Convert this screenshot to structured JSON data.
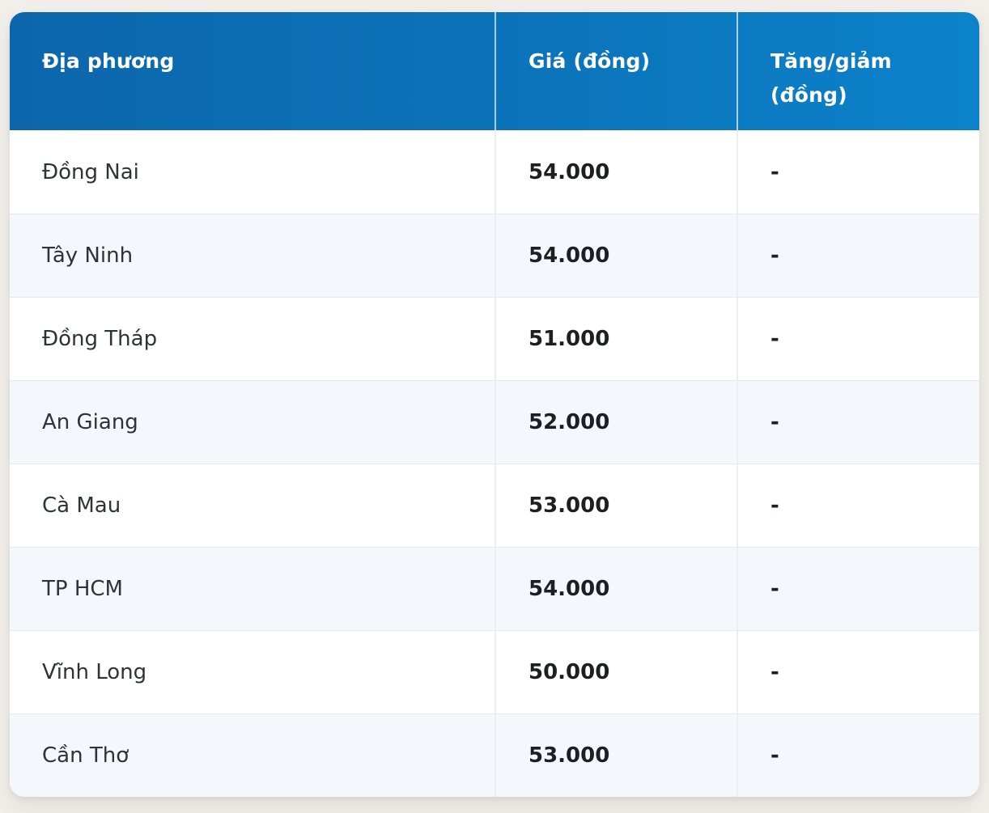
{
  "table": {
    "header": {
      "col_location": "Địa phương",
      "col_price": "Giá (đồng)",
      "col_change": "Tăng/giảm (đồng)"
    },
    "rows": [
      {
        "location": "Đồng Nai",
        "price": "54.000",
        "change": "-"
      },
      {
        "location": "Tây Ninh",
        "price": "54.000",
        "change": "-"
      },
      {
        "location": "Đồng Tháp",
        "price": "51.000",
        "change": "-"
      },
      {
        "location": "An Giang",
        "price": "52.000",
        "change": "-"
      },
      {
        "location": "Cà Mau",
        "price": "53.000",
        "change": "-"
      },
      {
        "location": "TP HCM",
        "price": "54.000",
        "change": "-"
      },
      {
        "location": "Vĩnh Long",
        "price": "50.000",
        "change": "-"
      },
      {
        "location": "Cần Thơ",
        "price": "53.000",
        "change": "-"
      }
    ]
  },
  "chart_data": {
    "type": "table",
    "columns": [
      "Địa phương",
      "Giá (đồng)",
      "Tăng/giảm (đồng)"
    ],
    "rows": [
      [
        "Đồng Nai",
        "54.000",
        "-"
      ],
      [
        "Tây Ninh",
        "54.000",
        "-"
      ],
      [
        "Đồng Tháp",
        "51.000",
        "-"
      ],
      [
        "An Giang",
        "52.000",
        "-"
      ],
      [
        "Cà Mau",
        "53.000",
        "-"
      ],
      [
        "TP HCM",
        "54.000",
        "-"
      ],
      [
        "Vĩnh Long",
        "50.000",
        "-"
      ],
      [
        "Cần Thơ",
        "53.000",
        "-"
      ]
    ],
    "prices_numeric": [
      54000,
      54000,
      51000,
      52000,
      53000,
      54000,
      50000,
      53000
    ],
    "layout": "striped table, header top, 3 columns, left-aligned cells"
  },
  "colors": {
    "header_gradient_left": "#0d66ab",
    "header_gradient_right": "#0c82cb",
    "header_text": "#ffffff",
    "row_white": "#ffffff",
    "row_stripe": "#f4f7fb",
    "divider": "#e7e9ec",
    "location_text": "#2f3337",
    "value_text": "#1d1f22",
    "page_background": "#f2efea"
  }
}
